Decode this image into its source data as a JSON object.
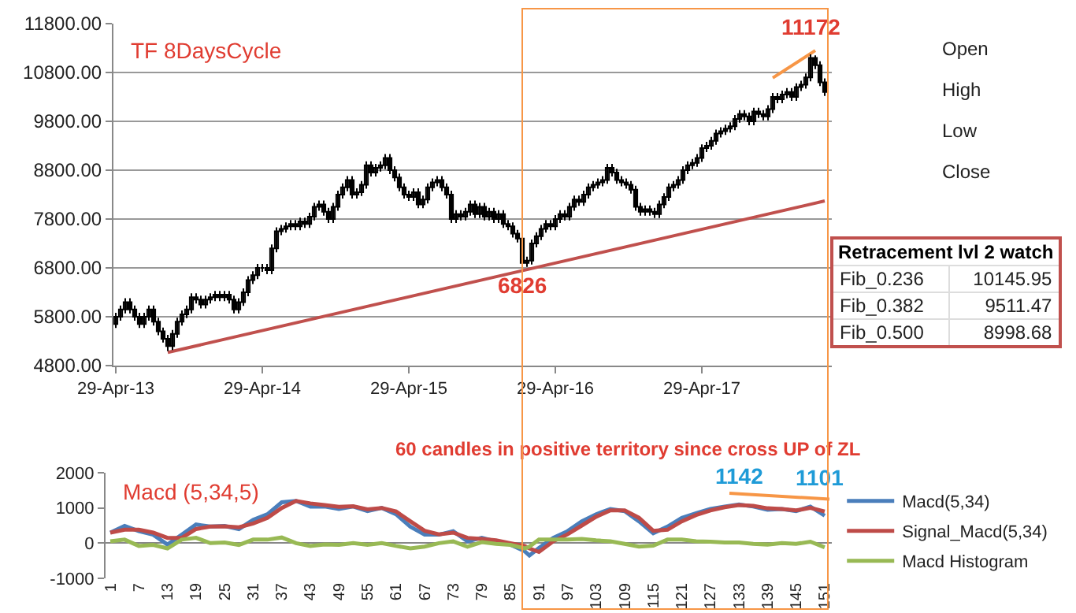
{
  "chart_data": [
    {
      "type": "candlestick",
      "title": "TF 8DaysCycle",
      "categories": [
        "29-Apr-13",
        null,
        null,
        null,
        null,
        null,
        null,
        null,
        null,
        null,
        null,
        null,
        null,
        null,
        null,
        null,
        null,
        null,
        null,
        null,
        null,
        null,
        null,
        null,
        null,
        null,
        null,
        null,
        null,
        null,
        null,
        "29-Apr-14",
        null,
        null,
        null,
        null,
        null,
        null,
        null,
        null,
        null,
        null,
        null,
        null,
        null,
        null,
        null,
        null,
        null,
        null,
        null,
        null,
        null,
        null,
        null,
        null,
        null,
        null,
        null,
        null,
        null,
        null,
        "29-Apr-15",
        null,
        null,
        null,
        null,
        null,
        null,
        null,
        null,
        null,
        null,
        null,
        null,
        null,
        null,
        null,
        null,
        null,
        null,
        null,
        null,
        null,
        null,
        null,
        null,
        null,
        null,
        null,
        null,
        null,
        null,
        "29-Apr-16",
        null,
        null,
        null,
        null,
        null,
        null,
        null,
        null,
        null,
        null,
        null,
        null,
        null,
        null,
        null,
        null,
        null,
        null,
        null,
        null,
        null,
        null,
        null,
        null,
        null,
        null,
        null,
        null,
        null,
        null,
        "29-Apr-17",
        null,
        null,
        null,
        null,
        null,
        null,
        null,
        null,
        null,
        null,
        null,
        null,
        null,
        null,
        null,
        null,
        null,
        null,
        null,
        null,
        null,
        null,
        null,
        null,
        null,
        null
      ],
      "ohlc": [
        [
          5650,
          5880,
          5570,
          5800
        ],
        [
          5800,
          6030,
          5720,
          5950
        ],
        [
          5950,
          6180,
          5870,
          6100
        ],
        [
          6100,
          6180,
          5870,
          5950
        ],
        [
          5950,
          6030,
          5720,
          5800
        ],
        [
          5800,
          5880,
          5570,
          5650
        ],
        [
          5650,
          5880,
          5570,
          5800
        ],
        [
          5800,
          6030,
          5720,
          5950
        ],
        [
          5950,
          6030,
          5620,
          5700
        ],
        [
          5700,
          5780,
          5420,
          5500
        ],
        [
          5500,
          5580,
          5270,
          5350
        ],
        [
          5350,
          5430,
          5100,
          5200
        ],
        [
          5200,
          5530,
          5120,
          5450
        ],
        [
          5450,
          5780,
          5370,
          5700
        ],
        [
          5700,
          5930,
          5620,
          5850
        ],
        [
          5850,
          6030,
          5770,
          5950
        ],
        [
          5950,
          6280,
          5870,
          6200
        ],
        [
          6200,
          6280,
          6070,
          6150
        ],
        [
          6150,
          6230,
          5970,
          6050
        ],
        [
          6050,
          6230,
          5970,
          6150
        ],
        [
          6150,
          6280,
          6070,
          6200
        ],
        [
          6200,
          6330,
          6120,
          6250
        ],
        [
          6250,
          6330,
          6120,
          6200
        ],
        [
          6200,
          6330,
          6120,
          6250
        ],
        [
          6250,
          6330,
          6070,
          6150
        ],
        [
          6150,
          6230,
          5870,
          5950
        ],
        [
          5950,
          6180,
          5870,
          6100
        ],
        [
          6100,
          6380,
          6020,
          6300
        ],
        [
          6300,
          6630,
          6220,
          6550
        ],
        [
          6550,
          6730,
          6470,
          6650
        ],
        [
          6650,
          6880,
          6570,
          6800
        ],
        [
          6800,
          6880,
          6720,
          6800
        ],
        [
          6800,
          6880,
          6670,
          6750
        ],
        [
          6750,
          7280,
          6670,
          7200
        ],
        [
          7200,
          7630,
          7120,
          7550
        ],
        [
          7550,
          7680,
          7470,
          7600
        ],
        [
          7600,
          7730,
          7520,
          7650
        ],
        [
          7650,
          7780,
          7570,
          7700
        ],
        [
          7700,
          7780,
          7570,
          7650
        ],
        [
          7650,
          7830,
          7570,
          7750
        ],
        [
          7750,
          7830,
          7620,
          7700
        ],
        [
          7700,
          7930,
          7620,
          7850
        ],
        [
          7850,
          8130,
          7770,
          8050
        ],
        [
          8050,
          8180,
          7970,
          8100
        ],
        [
          8100,
          8180,
          7870,
          7950
        ],
        [
          7950,
          8030,
          7720,
          7800
        ],
        [
          7800,
          8130,
          7720,
          8050
        ],
        [
          8050,
          8380,
          7970,
          8300
        ],
        [
          8300,
          8530,
          8220,
          8450
        ],
        [
          8450,
          8680,
          8370,
          8600
        ],
        [
          8600,
          8680,
          8220,
          8300
        ],
        [
          8300,
          8430,
          8220,
          8350
        ],
        [
          8350,
          8580,
          8270,
          8500
        ],
        [
          8500,
          8980,
          8420,
          8900
        ],
        [
          8900,
          8980,
          8670,
          8750
        ],
        [
          8750,
          8930,
          8670,
          8850
        ],
        [
          8850,
          8980,
          8770,
          8900
        ],
        [
          8900,
          9130,
          8820,
          9050
        ],
        [
          9050,
          9130,
          8720,
          8800
        ],
        [
          8800,
          8880,
          8570,
          8650
        ],
        [
          8650,
          8730,
          8370,
          8450
        ],
        [
          8450,
          8530,
          8220,
          8300
        ],
        [
          8300,
          8380,
          8170,
          8250
        ],
        [
          8250,
          8430,
          8170,
          8350
        ],
        [
          8350,
          8430,
          8020,
          8100
        ],
        [
          8100,
          8280,
          8020,
          8200
        ],
        [
          8200,
          8530,
          8120,
          8450
        ],
        [
          8450,
          8630,
          8370,
          8550
        ],
        [
          8550,
          8680,
          8470,
          8600
        ],
        [
          8600,
          8680,
          8370,
          8450
        ],
        [
          8450,
          8530,
          8220,
          8300
        ],
        [
          8300,
          8380,
          7720,
          7800
        ],
        [
          7800,
          7980,
          7720,
          7900
        ],
        [
          7900,
          7980,
          7770,
          7850
        ],
        [
          7850,
          8030,
          7770,
          7950
        ],
        [
          7950,
          8180,
          7870,
          8100
        ],
        [
          8100,
          8180,
          7820,
          7900
        ],
        [
          7900,
          8130,
          7820,
          8050
        ],
        [
          8050,
          8130,
          7770,
          7850
        ],
        [
          7850,
          8030,
          7770,
          7950
        ],
        [
          7950,
          8030,
          7720,
          7800
        ],
        [
          7800,
          7980,
          7720,
          7900
        ],
        [
          7900,
          7980,
          7620,
          7700
        ],
        [
          7700,
          7780,
          7570,
          7650
        ],
        [
          7650,
          7730,
          7420,
          7500
        ],
        [
          7500,
          7580,
          7320,
          7400
        ],
        [
          7400,
          7480,
          6826,
          6900
        ],
        [
          6900,
          7030,
          6820,
          6950
        ],
        [
          6950,
          7380,
          6870,
          7300
        ],
        [
          7300,
          7530,
          7220,
          7450
        ],
        [
          7450,
          7680,
          7370,
          7600
        ],
        [
          7600,
          7780,
          7520,
          7700
        ],
        [
          7700,
          7780,
          7570,
          7650
        ],
        [
          7650,
          7880,
          7570,
          7800
        ],
        [
          7800,
          7980,
          7720,
          7900
        ],
        [
          7900,
          7980,
          7770,
          7850
        ],
        [
          7850,
          8130,
          7770,
          8050
        ],
        [
          8050,
          8280,
          7970,
          8200
        ],
        [
          8200,
          8280,
          8070,
          8150
        ],
        [
          8150,
          8380,
          8070,
          8300
        ],
        [
          8300,
          8530,
          8220,
          8450
        ],
        [
          8450,
          8580,
          8370,
          8500
        ],
        [
          8500,
          8630,
          8420,
          8550
        ],
        [
          8550,
          8680,
          8470,
          8600
        ],
        [
          8600,
          8930,
          8520,
          8850
        ],
        [
          8850,
          8930,
          8670,
          8750
        ],
        [
          8750,
          8830,
          8520,
          8600
        ],
        [
          8600,
          8680,
          8470,
          8550
        ],
        [
          8550,
          8630,
          8420,
          8500
        ],
        [
          8500,
          8580,
          8320,
          8400
        ],
        [
          8400,
          8480,
          7970,
          8050
        ],
        [
          8050,
          8130,
          7870,
          7950
        ],
        [
          7950,
          8080,
          7870,
          8000
        ],
        [
          8000,
          8080,
          7870,
          7950
        ],
        [
          7950,
          8030,
          7820,
          7900
        ],
        [
          7900,
          8180,
          7820,
          8100
        ],
        [
          8100,
          8330,
          8020,
          8250
        ],
        [
          8250,
          8530,
          8170,
          8450
        ],
        [
          8450,
          8580,
          8370,
          8500
        ],
        [
          8500,
          8680,
          8420,
          8600
        ],
        [
          8600,
          8880,
          8520,
          8800
        ],
        [
          8800,
          8980,
          8720,
          8900
        ],
        [
          8900,
          9030,
          8820,
          8950
        ],
        [
          8950,
          9130,
          8870,
          9050
        ],
        [
          9050,
          9330,
          8970,
          9250
        ],
        [
          9250,
          9380,
          9170,
          9300
        ],
        [
          9300,
          9480,
          9220,
          9400
        ],
        [
          9400,
          9630,
          9320,
          9550
        ],
        [
          9550,
          9680,
          9470,
          9600
        ],
        [
          9600,
          9730,
          9520,
          9650
        ],
        [
          9650,
          9780,
          9570,
          9700
        ],
        [
          9700,
          9930,
          9620,
          9850
        ],
        [
          9850,
          10030,
          9770,
          9950
        ],
        [
          9950,
          10030,
          9820,
          9900
        ],
        [
          9900,
          9980,
          9720,
          9800
        ],
        [
          9800,
          10080,
          9720,
          10000
        ],
        [
          10000,
          10080,
          9870,
          9950
        ],
        [
          9950,
          10030,
          9820,
          9900
        ],
        [
          9900,
          10130,
          9820,
          10050
        ],
        [
          10050,
          10380,
          9970,
          10300
        ],
        [
          10300,
          10380,
          10170,
          10250
        ],
        [
          10250,
          10430,
          10170,
          10350
        ],
        [
          10350,
          10480,
          10270,
          10400
        ],
        [
          10400,
          10480,
          10220,
          10300
        ],
        [
          10300,
          10580,
          10220,
          10500
        ],
        [
          10500,
          10630,
          10420,
          10550
        ],
        [
          10550,
          10780,
          10470,
          10700
        ],
        [
          10700,
          11172,
          10620,
          11100
        ],
        [
          11100,
          11150,
          10870,
          10950
        ],
        [
          10950,
          11030,
          10520,
          10600
        ],
        [
          10600,
          10680,
          10320,
          10400
        ]
      ],
      "series": [
        {
          "type": "line",
          "color": "#c0504d",
          "values": [
            null,
            null,
            null,
            null,
            null,
            null,
            null,
            null,
            null,
            null,
            null,
            5070,
            null,
            null,
            null,
            null,
            null,
            null,
            null,
            null,
            null,
            null,
            null,
            null,
            null,
            null,
            null,
            null,
            null,
            null,
            null,
            null,
            null,
            null,
            null,
            null,
            null,
            null,
            null,
            null,
            null,
            null,
            null,
            null,
            null,
            null,
            null,
            null,
            null,
            null,
            null,
            null,
            null,
            null,
            null,
            null,
            null,
            null,
            null,
            null,
            null,
            null,
            null,
            null,
            null,
            null,
            null,
            null,
            null,
            null,
            null,
            null,
            null,
            null,
            null,
            null,
            null,
            null,
            null,
            null,
            null,
            null,
            null,
            null,
            null,
            null,
            null,
            null,
            null,
            null,
            null,
            null,
            null,
            null,
            null,
            null,
            null,
            null,
            null,
            null,
            null,
            null,
            null,
            null,
            null,
            null,
            null,
            null,
            null,
            null,
            null,
            null,
            null,
            null,
            null,
            null,
            null,
            null,
            null,
            null,
            null,
            null,
            null,
            null,
            null,
            null,
            null,
            null,
            null,
            null,
            null,
            null,
            null,
            null,
            null,
            null,
            null,
            null,
            null,
            null,
            null,
            null,
            null,
            null,
            null,
            null,
            null,
            null,
            null,
            null,
            8170
          ]
        },
        {
          "type": "line",
          "color": "#f79646",
          "values": [
            null,
            null,
            null,
            null,
            null,
            null,
            null,
            null,
            null,
            null,
            null,
            null,
            null,
            null,
            null,
            null,
            null,
            null,
            null,
            null,
            null,
            null,
            null,
            null,
            null,
            null,
            null,
            null,
            null,
            null,
            null,
            null,
            null,
            null,
            null,
            null,
            null,
            null,
            null,
            null,
            null,
            null,
            null,
            null,
            null,
            null,
            null,
            null,
            null,
            null,
            null,
            null,
            null,
            null,
            null,
            null,
            null,
            null,
            null,
            null,
            null,
            null,
            null,
            null,
            null,
            null,
            null,
            null,
            null,
            null,
            null,
            null,
            null,
            null,
            null,
            null,
            null,
            null,
            null,
            null,
            null,
            null,
            null,
            null,
            null,
            null,
            null,
            null,
            null,
            null,
            null,
            null,
            null,
            null,
            null,
            null,
            null,
            null,
            null,
            null,
            null,
            null,
            null,
            null,
            null,
            null,
            null,
            null,
            null,
            null,
            null,
            null,
            null,
            null,
            null,
            null,
            null,
            null,
            null,
            null,
            null,
            null,
            null,
            null,
            null,
            null,
            null,
            null,
            null,
            null,
            null,
            null,
            null,
            null,
            null,
            null,
            null,
            null,
            null,
            10690,
            null,
            null,
            null,
            null,
            null,
            null,
            null,
            null,
            11250,
            null,
            null
          ]
        }
      ],
      "ylim": [
        4800,
        11800
      ],
      "yticks": [
        {
          "value": 4800,
          "label": "4800.00"
        },
        {
          "value": 5800,
          "label": "5800.00"
        },
        {
          "value": 6800,
          "label": "6800.00"
        },
        {
          "value": 7800,
          "label": "7800.00"
        },
        {
          "value": 8800,
          "label": "8800.00"
        },
        {
          "value": 9800,
          "label": "9800.00"
        },
        {
          "value": 10800,
          "label": "10800.00"
        },
        {
          "value": 11800,
          "label": "11800.00"
        }
      ],
      "grid": "y",
      "annotations": [
        {
          "text": "11172",
          "y": 11172
        },
        {
          "text": "6826",
          "y": 6826
        },
        "Open",
        "High",
        "Low",
        "Close"
      ]
    },
    {
      "type": "line",
      "title": "Macd (5,34,5)",
      "x": [
        1,
        4,
        7,
        10,
        13,
        16,
        19,
        22,
        25,
        28,
        31,
        34,
        37,
        40,
        43,
        46,
        49,
        52,
        55,
        58,
        61,
        64,
        67,
        70,
        73,
        76,
        79,
        82,
        85,
        88,
        89,
        91,
        94,
        97,
        100,
        103,
        106,
        109,
        112,
        115,
        118,
        121,
        124,
        127,
        130,
        133,
        136,
        139,
        142,
        145,
        148,
        151
      ],
      "series": [
        {
          "name": "Macd(5,34)",
          "color": "#4a7ebb",
          "values": [
            300,
            490,
            340,
            240,
            -40,
            240,
            530,
            470,
            490,
            400,
            660,
            820,
            1160,
            1200,
            1040,
            1040,
            970,
            1040,
            910,
            1000,
            820,
            470,
            240,
            240,
            340,
            50,
            150,
            50,
            -40,
            -230,
            -350,
            -140,
            150,
            340,
            620,
            820,
            970,
            910,
            620,
            280,
            470,
            720,
            850,
            970,
            1040,
            1100,
            1040,
            950,
            970,
            910,
            1040,
            780
          ]
        },
        {
          "name": "Signal_Macd(5,34)",
          "color": "#be4b48",
          "values": [
            300,
            380,
            380,
            300,
            150,
            150,
            400,
            470,
            480,
            450,
            560,
            720,
            1000,
            1200,
            1130,
            1080,
            1030,
            1050,
            960,
            1000,
            900,
            620,
            350,
            250,
            300,
            150,
            120,
            80,
            0,
            -80,
            -150,
            -250,
            50,
            250,
            500,
            750,
            930,
            930,
            720,
            350,
            380,
            620,
            800,
            930,
            1020,
            1080,
            1060,
            990,
            970,
            930,
            1000,
            900
          ]
        },
        {
          "name": "Macd Histogram",
          "color": "#98b954",
          "values": [
            50,
            100,
            -80,
            -50,
            -150,
            100,
            150,
            0,
            20,
            -50,
            100,
            100,
            160,
            0,
            -80,
            -40,
            -50,
            0,
            -50,
            0,
            -80,
            -150,
            -100,
            0,
            50,
            -100,
            30,
            -20,
            -50,
            -150,
            -100,
            100,
            100,
            100,
            120,
            80,
            50,
            -20,
            -100,
            -70,
            100,
            100,
            50,
            40,
            20,
            20,
            -20,
            -40,
            0,
            -20,
            40,
            -120
          ]
        },
        {
          "type": "line",
          "x": [
            131,
            152
          ],
          "values": [
            1420,
            1250
          ],
          "color": "#f79646"
        }
      ],
      "xlim": [
        0,
        152.5
      ],
      "xticks": [
        1,
        7,
        13,
        19,
        25,
        31,
        37,
        43,
        49,
        55,
        61,
        67,
        73,
        79,
        85,
        91,
        97,
        103,
        109,
        115,
        121,
        127,
        133,
        139,
        145,
        151
      ],
      "ylim": [
        -1000,
        2000
      ],
      "yticks": [
        -1000,
        0,
        1000,
        2000
      ],
      "legend": "right",
      "annotations": [
        "60 candles in positive territory since cross UP of ZL",
        {
          "text": "1142",
          "x": 133,
          "y": 1142
        },
        {
          "text": "1101",
          "x": 150,
          "y": 1101
        }
      ]
    },
    {
      "type": "other",
      "title": "Retracement lvl 2 watch",
      "categories": [
        "Fib_0.236",
        "Fib_0.382",
        "Fib_0.500"
      ],
      "values": [
        10145.95,
        9511.47,
        8998.68
      ],
      "data_labels": true
    }
  ]
}
